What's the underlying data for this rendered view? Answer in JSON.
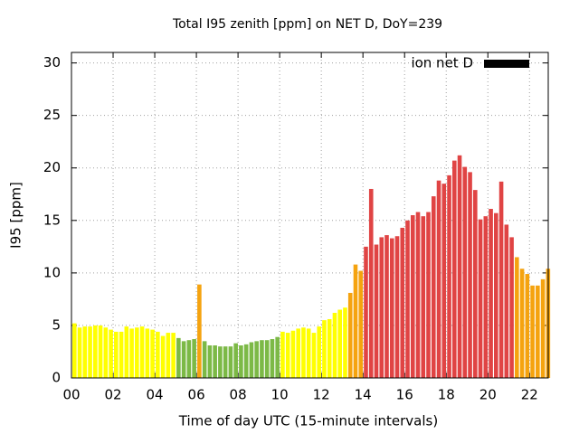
{
  "chart_data": {
    "type": "bar",
    "title": "Total I95 zenith [ppm] on NET D, DoY=239",
    "xlabel": "Time of day UTC (15-minute intervals)",
    "ylabel": "I95 [ppm]",
    "x": [
      0,
      0.25,
      0.5,
      0.75,
      1,
      1.25,
      1.5,
      1.75,
      2,
      2.25,
      2.5,
      2.75,
      3,
      3.25,
      3.5,
      3.75,
      4,
      4.25,
      4.5,
      4.75,
      5,
      5.25,
      5.5,
      5.75,
      6,
      6.25,
      6.5,
      6.75,
      7,
      7.25,
      7.5,
      7.75,
      8,
      8.25,
      8.5,
      8.75,
      9,
      9.25,
      9.5,
      9.75,
      10,
      10.25,
      10.5,
      10.75,
      11,
      11.25,
      11.5,
      11.75,
      12,
      12.25,
      12.5,
      12.75,
      13,
      13.25,
      13.5,
      13.75,
      14,
      14.25,
      14.5,
      14.75,
      15,
      15.25,
      15.5,
      15.75,
      16,
      16.25,
      16.5,
      16.75,
      17,
      17.25,
      17.5,
      17.75,
      18,
      18.25,
      18.5,
      18.75,
      19,
      19.25,
      19.5,
      19.75,
      20,
      20.25,
      20.5,
      20.75,
      21,
      21.25,
      21.5,
      21.75,
      22,
      22.25,
      22.5,
      22.75
    ],
    "series": [
      {
        "name": "ion net D",
        "color": "#000000",
        "values": [
          5.2,
          4.8,
          4.9,
          4.9,
          5.0,
          5.0,
          4.8,
          4.6,
          4.4,
          4.4,
          4.9,
          4.7,
          4.8,
          4.9,
          4.7,
          4.6,
          4.4,
          4.0,
          4.3,
          4.3,
          3.8,
          3.5,
          3.6,
          3.7,
          8.9,
          3.5,
          3.1,
          3.1,
          3.0,
          3.0,
          3.0,
          3.3,
          3.1,
          3.2,
          3.4,
          3.5,
          3.6,
          3.6,
          3.7,
          3.9,
          4.4,
          4.3,
          4.5,
          4.7,
          4.8,
          4.7,
          4.3,
          4.9,
          5.5,
          5.6,
          6.2,
          6.5,
          6.7,
          8.1,
          10.8,
          10.2,
          12.5,
          18.0,
          12.7,
          13.4,
          13.6,
          13.3,
          13.5,
          14.3,
          15.0,
          15.5,
          15.8,
          15.4,
          15.8,
          17.3,
          18.8,
          18.5,
          19.3,
          20.7,
          21.2,
          20.1,
          19.6,
          17.9,
          15.1,
          15.4,
          16.1,
          15.7,
          18.7,
          14.6,
          13.4,
          11.5,
          10.4,
          9.9,
          8.8,
          8.8,
          9.4,
          10.4
        ],
        "bar_colors": [
          "#ffff00",
          "#ffff00",
          "#ffff00",
          "#ffff00",
          "#ffff00",
          "#ffff00",
          "#ffff00",
          "#ffff00",
          "#ffff00",
          "#ffff00",
          "#ffff00",
          "#ffff00",
          "#ffff00",
          "#ffff00",
          "#ffff00",
          "#ffff00",
          "#ffff00",
          "#ffff00",
          "#ffff00",
          "#ffff00",
          "#7cb946",
          "#7cb946",
          "#7cb946",
          "#7cb946",
          "#f5a30f",
          "#7cb946",
          "#7cb946",
          "#7cb946",
          "#7cb946",
          "#7cb946",
          "#7cb946",
          "#7cb946",
          "#7cb946",
          "#7cb946",
          "#7cb946",
          "#7cb946",
          "#7cb946",
          "#7cb946",
          "#7cb946",
          "#7cb946",
          "#ffff00",
          "#ffff00",
          "#ffff00",
          "#ffff00",
          "#ffff00",
          "#ffff00",
          "#ffff00",
          "#ffff00",
          "#ffff00",
          "#ffff00",
          "#ffff00",
          "#ffff00",
          "#ffff00",
          "#f5a30f",
          "#f5a30f",
          "#f5a30f",
          "#e04444",
          "#e04444",
          "#e04444",
          "#e04444",
          "#e04444",
          "#e04444",
          "#e04444",
          "#e04444",
          "#e04444",
          "#e04444",
          "#e04444",
          "#e04444",
          "#e04444",
          "#e04444",
          "#e04444",
          "#e04444",
          "#e04444",
          "#e04444",
          "#e04444",
          "#e04444",
          "#e04444",
          "#e04444",
          "#e04444",
          "#e04444",
          "#e04444",
          "#e04444",
          "#e04444",
          "#e04444",
          "#e04444",
          "#f5a30f",
          "#f5a30f",
          "#f5a30f",
          "#f5a30f",
          "#f5a30f",
          "#f5a30f",
          "#f5a30f"
        ]
      }
    ],
    "xlim": [
      0,
      22.9
    ],
    "xticks": [
      {
        "value": 0,
        "label": "00"
      },
      {
        "value": 2,
        "label": "02"
      },
      {
        "value": 4,
        "label": "04"
      },
      {
        "value": 6,
        "label": "06"
      },
      {
        "value": 8,
        "label": "08"
      },
      {
        "value": 10,
        "label": "10"
      },
      {
        "value": 12,
        "label": "12"
      },
      {
        "value": 14,
        "label": "14"
      },
      {
        "value": 16,
        "label": "16"
      },
      {
        "value": 18,
        "label": "18"
      },
      {
        "value": 20,
        "label": "20"
      },
      {
        "value": 22,
        "label": "22"
      }
    ],
    "ylim": [
      0,
      31
    ],
    "yticks": [
      0,
      5,
      10,
      15,
      20,
      25,
      30
    ],
    "grid": true,
    "legend": "top-right"
  }
}
